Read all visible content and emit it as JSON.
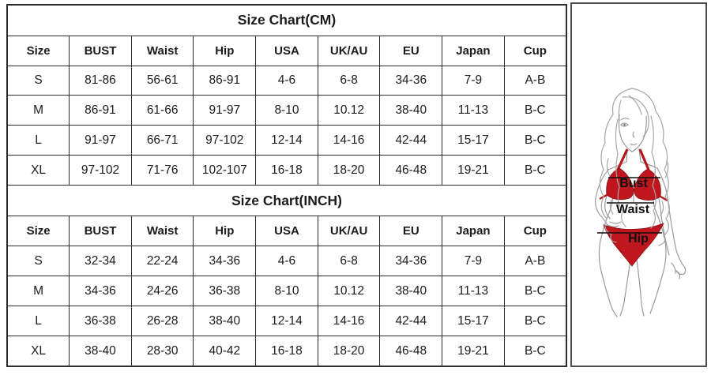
{
  "tables": [
    {
      "title": "Size Chart(CM)",
      "columns": [
        "Size",
        "BUST",
        "Waist",
        "Hip",
        "USA",
        "UK/AU",
        "EU",
        "Japan",
        "Cup"
      ],
      "rows": [
        [
          "S",
          "81-86",
          "56-61",
          "86-91",
          "4-6",
          "6-8",
          "34-36",
          "7-9",
          "A-B"
        ],
        [
          "M",
          "86-91",
          "61-66",
          "91-97",
          "8-10",
          "10.12",
          "38-40",
          "11-13",
          "B-C"
        ],
        [
          "L",
          "91-97",
          "66-71",
          "97-102",
          "12-14",
          "14-16",
          "42-44",
          "15-17",
          "B-C"
        ],
        [
          "XL",
          "97-102",
          "71-76",
          "102-107",
          "16-18",
          "18-20",
          "46-48",
          "19-21",
          "B-C"
        ]
      ]
    },
    {
      "title": "Size Chart(INCH)",
      "columns": [
        "Size",
        "BUST",
        "Waist",
        "Hip",
        "USA",
        "UK/AU",
        "EU",
        "Japan",
        "Cup"
      ],
      "rows": [
        [
          "S",
          "32-34",
          "22-24",
          "34-36",
          "4-6",
          "6-8",
          "34-36",
          "7-9",
          "A-B"
        ],
        [
          "M",
          "34-36",
          "24-26",
          "36-38",
          "8-10",
          "10.12",
          "38-40",
          "11-13",
          "B-C"
        ],
        [
          "L",
          "36-38",
          "26-28",
          "38-40",
          "12-14",
          "14-16",
          "42-44",
          "15-17",
          "B-C"
        ],
        [
          "XL",
          "38-40",
          "28-30",
          "40-42",
          "16-18",
          "18-20",
          "46-48",
          "19-21",
          "B-C"
        ]
      ]
    }
  ],
  "figure": {
    "labels": {
      "bust": "Bust",
      "waist": "Waist",
      "hip": "Hip"
    },
    "colors": {
      "bikini_red": "#c0161e",
      "bikini_red_dark": "#8e1016",
      "line_art_gray": "#9a9a9a",
      "hair_gray": "#a6a6a6",
      "measure_line_black": "#111111",
      "table_border": "#2b2b2b"
    }
  }
}
